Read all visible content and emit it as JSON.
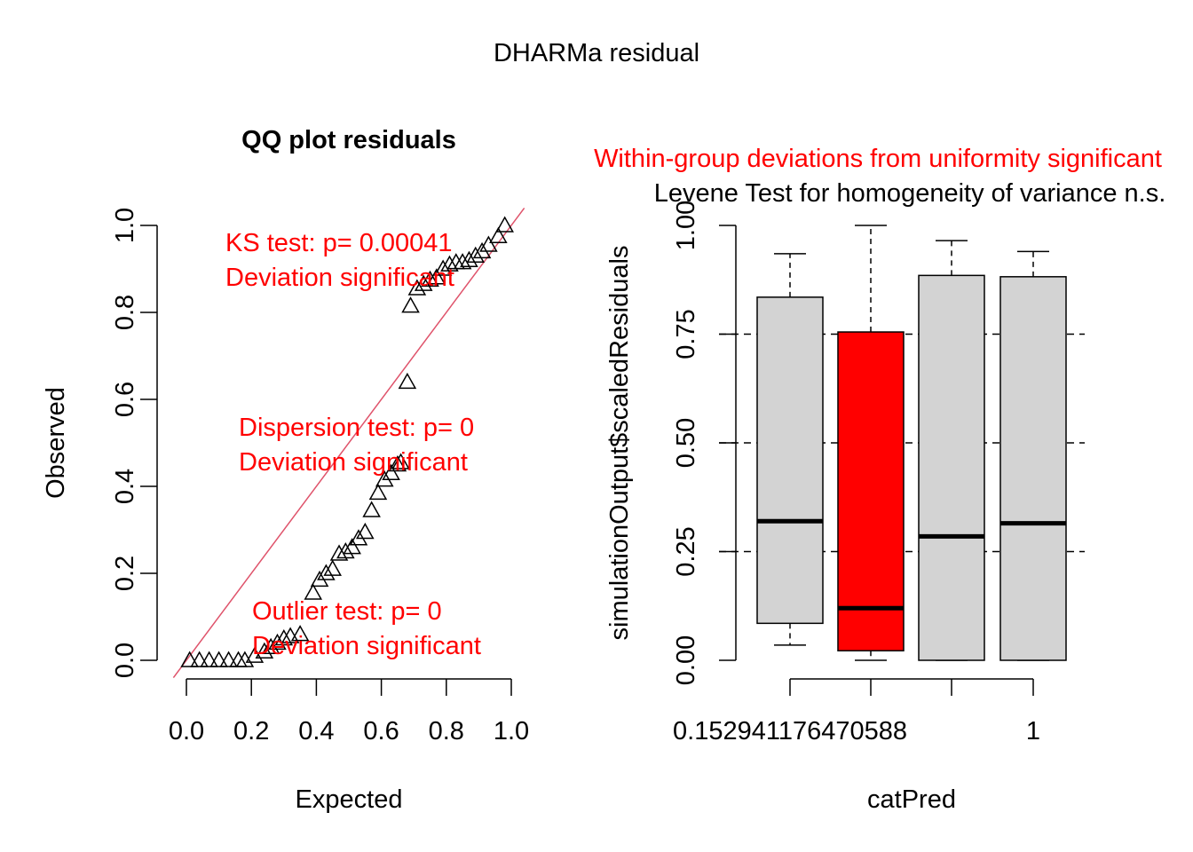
{
  "page_title": "DHARMa residual",
  "chart_data": [
    {
      "type": "scatter",
      "title": "QQ plot residuals",
      "xlabel": "Expected",
      "ylabel": "Observed",
      "xlim": [
        0,
        1
      ],
      "ylim": [
        0,
        1
      ],
      "x_ticks": [
        "0.0",
        "0.2",
        "0.4",
        "0.6",
        "0.8",
        "1.0"
      ],
      "y_ticks": [
        "0.0",
        "0.2",
        "0.4",
        "0.6",
        "0.8",
        "1.0"
      ],
      "reference_line": {
        "slope": 1,
        "intercept": 0,
        "color": "#DF536B"
      },
      "point_marker": "triangle-open",
      "points": [
        [
          0.01,
          0.0
        ],
        [
          0.04,
          0.0
        ],
        [
          0.07,
          0.0
        ],
        [
          0.1,
          0.0
        ],
        [
          0.13,
          0.0
        ],
        [
          0.16,
          0.0
        ],
        [
          0.18,
          0.0
        ],
        [
          0.21,
          0.01
        ],
        [
          0.24,
          0.02
        ],
        [
          0.26,
          0.03
        ],
        [
          0.28,
          0.04
        ],
        [
          0.3,
          0.05
        ],
        [
          0.32,
          0.055
        ],
        [
          0.35,
          0.06
        ],
        [
          0.39,
          0.155
        ],
        [
          0.41,
          0.185
        ],
        [
          0.43,
          0.2
        ],
        [
          0.45,
          0.21
        ],
        [
          0.47,
          0.245
        ],
        [
          0.49,
          0.25
        ],
        [
          0.51,
          0.26
        ],
        [
          0.53,
          0.28
        ],
        [
          0.55,
          0.295
        ],
        [
          0.57,
          0.345
        ],
        [
          0.59,
          0.385
        ],
        [
          0.61,
          0.415
        ],
        [
          0.63,
          0.43
        ],
        [
          0.65,
          0.45
        ],
        [
          0.66,
          0.455
        ],
        [
          0.68,
          0.64
        ],
        [
          0.69,
          0.815
        ],
        [
          0.71,
          0.855
        ],
        [
          0.73,
          0.865
        ],
        [
          0.75,
          0.875
        ],
        [
          0.77,
          0.88
        ],
        [
          0.79,
          0.9
        ],
        [
          0.81,
          0.91
        ],
        [
          0.83,
          0.915
        ],
        [
          0.85,
          0.915
        ],
        [
          0.87,
          0.92
        ],
        [
          0.89,
          0.93
        ],
        [
          0.91,
          0.94
        ],
        [
          0.93,
          0.955
        ],
        [
          0.96,
          0.975
        ],
        [
          0.98,
          1.0
        ]
      ],
      "annotations": [
        {
          "lines": [
            "KS test: p= 0.00041",
            "Deviation  significant"
          ],
          "color": "#FF0000"
        },
        {
          "lines": [
            "Dispersion test: p= 0",
            "Deviation  significant"
          ],
          "color": "#FF0000"
        },
        {
          "lines": [
            "Outlier test: p= 0",
            "Deviation  significant"
          ],
          "color": "#FF0000"
        }
      ]
    },
    {
      "type": "box",
      "title_lines": [
        {
          "text": "Within-group deviations from uniformity significant",
          "color": "#FF0000"
        },
        {
          "text": "Levene Test for homogeneity of variance n.s.",
          "color": "#000000"
        }
      ],
      "xlabel": "catPred",
      "ylabel": "simulationOutput$scaledResiduals",
      "ylim": [
        0,
        1
      ],
      "y_ticks": [
        "0.00",
        "0.25",
        "0.50",
        "0.75",
        "1.00"
      ],
      "x_tick_labels": [
        "0.152941176470588",
        "",
        "",
        "1"
      ],
      "reference_lines": [
        0.25,
        0.5,
        0.75
      ],
      "boxes": [
        {
          "whisker_low": 0.035,
          "q1": 0.085,
          "median": 0.32,
          "q3": 0.835,
          "whisker_high": 0.935,
          "color": "#D3D3D3"
        },
        {
          "whisker_low": 0.0,
          "q1": 0.022,
          "median": 0.12,
          "q3": 0.755,
          "whisker_high": 1.0,
          "color": "#FF0000"
        },
        {
          "whisker_low": 0.0,
          "q1": 0.0,
          "median": 0.285,
          "q3": 0.885,
          "whisker_high": 0.965,
          "color": "#D3D3D3"
        },
        {
          "whisker_low": 0.0,
          "q1": 0.0,
          "median": 0.315,
          "q3": 0.882,
          "whisker_high": 0.94,
          "color": "#D3D3D3"
        }
      ]
    }
  ]
}
